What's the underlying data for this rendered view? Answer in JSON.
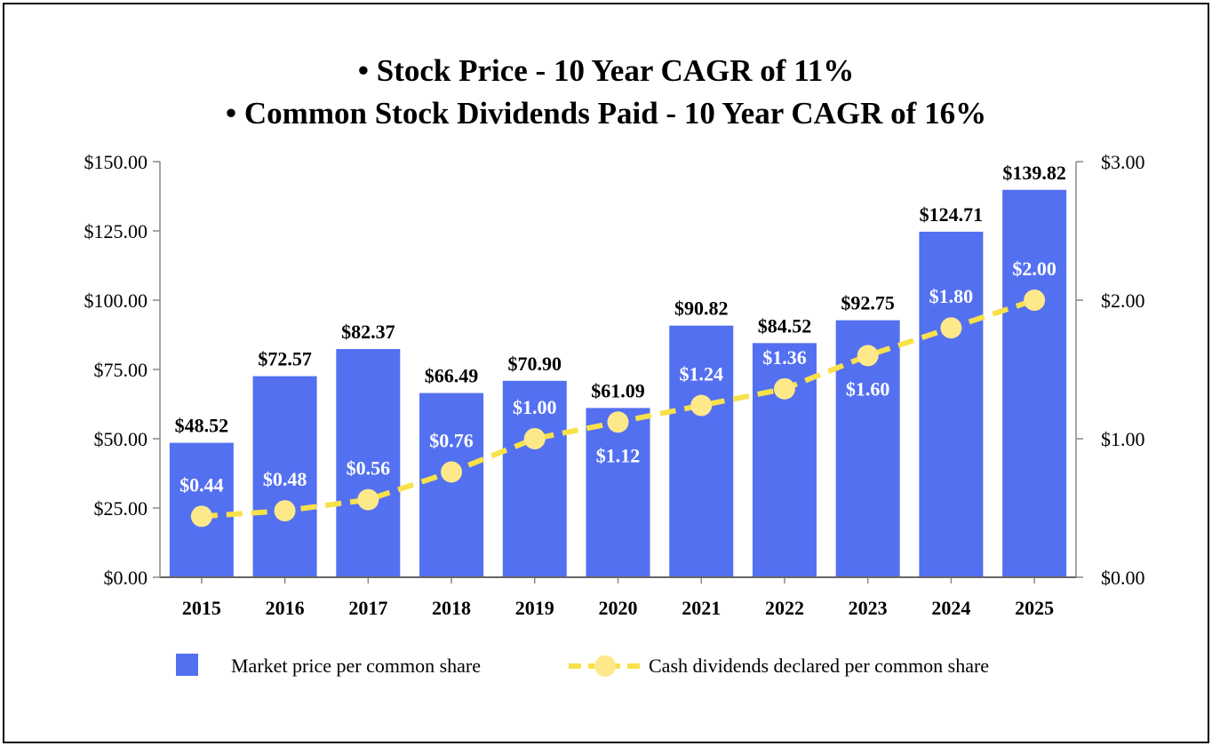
{
  "chart_data": {
    "type": "bar",
    "title_lines": [
      "• Stock Price - 10 Year CAGR of 11%",
      "• Common Stock Dividends Paid - 10 Year CAGR of 16%"
    ],
    "categories": [
      "2015",
      "2016",
      "2017",
      "2018",
      "2019",
      "2020",
      "2021",
      "2022",
      "2023",
      "2024",
      "2025"
    ],
    "series": [
      {
        "name": "Market price per common share",
        "type": "bar",
        "axis": "left",
        "color": "#5370F0",
        "values": [
          48.52,
          72.57,
          82.37,
          66.49,
          70.9,
          61.09,
          90.82,
          84.52,
          92.75,
          124.71,
          139.82
        ],
        "labels": [
          "$48.52",
          "$72.57",
          "$82.37",
          "$66.49",
          "$70.90",
          "$61.09",
          "$90.82",
          "$84.52",
          "$92.75",
          "$124.71",
          "$139.82"
        ]
      },
      {
        "name": "Cash dividends declared per common share",
        "type": "line",
        "style": "dashed",
        "axis": "right",
        "color": "#F8E14A",
        "marker_color": "#FDE98A",
        "values": [
          0.44,
          0.48,
          0.56,
          0.76,
          1.0,
          1.12,
          1.24,
          1.36,
          1.6,
          1.8,
          2.0
        ],
        "labels": [
          "$0.44",
          "$0.48",
          "$0.56",
          "$0.76",
          "$1.00",
          "$1.12",
          "$1.24",
          "$1.36",
          "$1.60",
          "$1.80",
          "$2.00"
        ],
        "label_side": [
          "above",
          "above",
          "above",
          "above",
          "above",
          "below",
          "above",
          "above",
          "below",
          "above",
          "above"
        ]
      }
    ],
    "left_axis": {
      "ylim": [
        0,
        150
      ],
      "ticks": [
        "$0.00",
        "$25.00",
        "$50.00",
        "$75.00",
        "$100.00",
        "$125.00",
        "$150.00"
      ]
    },
    "right_axis": {
      "ylim": [
        0,
        3
      ],
      "ticks": [
        "$0.00",
        "$1.00",
        "$2.00",
        "$3.00"
      ]
    },
    "grid": false,
    "legend": "bottom"
  }
}
